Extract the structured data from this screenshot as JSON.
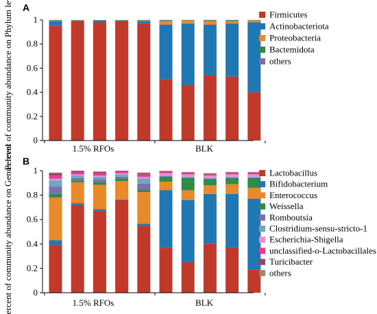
{
  "chart_data": [
    {
      "type": "bar",
      "stacked": true,
      "panel_label": "A",
      "title": "",
      "ylabel": "Percent of community abundance on Phylum level",
      "xlabel": "",
      "ylim": [
        0,
        1
      ],
      "yticks": [
        "0",
        "0.2",
        "0.4",
        "0.6",
        "0.8",
        "1"
      ],
      "group_labels": [
        "1.5% RFOs",
        "BLK"
      ],
      "legend_position": "right",
      "series": [
        {
          "name": "Firmicutes",
          "color": "#c0392b",
          "values": [
            0.95,
            0.99,
            0.98,
            0.99,
            0.97,
            0.51,
            0.46,
            0.54,
            0.53,
            0.4
          ]
        },
        {
          "name": "Actinobacteriota",
          "color": "#1f77b4",
          "values": [
            0.04,
            0.005,
            0.015,
            0.005,
            0.02,
            0.45,
            0.51,
            0.42,
            0.44,
            0.58
          ]
        },
        {
          "name": "Proteobacteria",
          "color": "#e8892b",
          "values": [
            0.003,
            0.002,
            0.002,
            0.002,
            0.003,
            0.03,
            0.025,
            0.03,
            0.02,
            0.015
          ]
        },
        {
          "name": "Bactemidota",
          "color": "#2e8b4a",
          "values": [
            0.005,
            0.002,
            0.002,
            0.002,
            0.005,
            0.005,
            0.003,
            0.005,
            0.005,
            0.003
          ]
        },
        {
          "name": "others",
          "color": "#7b6fb0",
          "values": [
            0.002,
            0.001,
            0.001,
            0.001,
            0.002,
            0.005,
            0.002,
            0.005,
            0.005,
            0.002
          ]
        }
      ]
    },
    {
      "type": "bar",
      "stacked": true,
      "panel_label": "B",
      "title": "",
      "ylabel": "Percent of community abundance on Genus level",
      "xlabel": "",
      "ylim": [
        0,
        1
      ],
      "yticks": [
        "0",
        "0.2",
        "0.4",
        "0.6",
        "0.8",
        "1"
      ],
      "group_labels": [
        "1.5% RFOs",
        "BLK"
      ],
      "legend_position": "right",
      "series": [
        {
          "name": "Lactobacillus",
          "color": "#c0392b",
          "values": [
            0.39,
            0.72,
            0.67,
            0.76,
            0.55,
            0.37,
            0.25,
            0.4,
            0.37,
            0.19
          ]
        },
        {
          "name": "Bifidobacterium",
          "color": "#1f77b4",
          "values": [
            0.04,
            0.015,
            0.015,
            0.005,
            0.015,
            0.47,
            0.51,
            0.41,
            0.44,
            0.58
          ]
        },
        {
          "name": "Enterococcus",
          "color": "#e8892b",
          "values": [
            0.35,
            0.17,
            0.2,
            0.15,
            0.26,
            0.07,
            0.08,
            0.07,
            0.08,
            0.09
          ]
        },
        {
          "name": "Weissella",
          "color": "#2e8b4a",
          "values": [
            0.03,
            0.015,
            0.02,
            0.02,
            0.02,
            0.04,
            0.1,
            0.05,
            0.05,
            0.08
          ]
        },
        {
          "name": "Romboutsia",
          "color": "#7b6fb0",
          "values": [
            0.06,
            0.02,
            0.025,
            0.015,
            0.05,
            0.005,
            0.005,
            0.005,
            0.005,
            0.005
          ]
        },
        {
          "name": "Clostridium-sensu-stricto-1",
          "color": "#6fa8b8",
          "values": [
            0.05,
            0.02,
            0.02,
            0.02,
            0.04,
            0.005,
            0.005,
            0.005,
            0.005,
            0.005
          ]
        },
        {
          "name": "Escherichia-Shigella",
          "color": "#e58ee0",
          "values": [
            0.015,
            0.01,
            0.01,
            0.01,
            0.015,
            0.02,
            0.02,
            0.02,
            0.02,
            0.02
          ]
        },
        {
          "name": "unclassified-o-Lactobacillales",
          "color": "#e33d8f",
          "values": [
            0.025,
            0.02,
            0.02,
            0.015,
            0.02,
            0.01,
            0.01,
            0.01,
            0.01,
            0.01
          ]
        },
        {
          "name": "Turicibacter",
          "color": "#8e4c6a",
          "values": [
            0.02,
            0.01,
            0.01,
            0.005,
            0.01,
            0.005,
            0.005,
            0.005,
            0.005,
            0.005
          ]
        },
        {
          "name": "others",
          "color": "#a6826b",
          "values": [
            0.005,
            0.005,
            0.005,
            0.005,
            0.005,
            0.005,
            0.005,
            0.005,
            0.005,
            0.005
          ]
        }
      ]
    }
  ]
}
